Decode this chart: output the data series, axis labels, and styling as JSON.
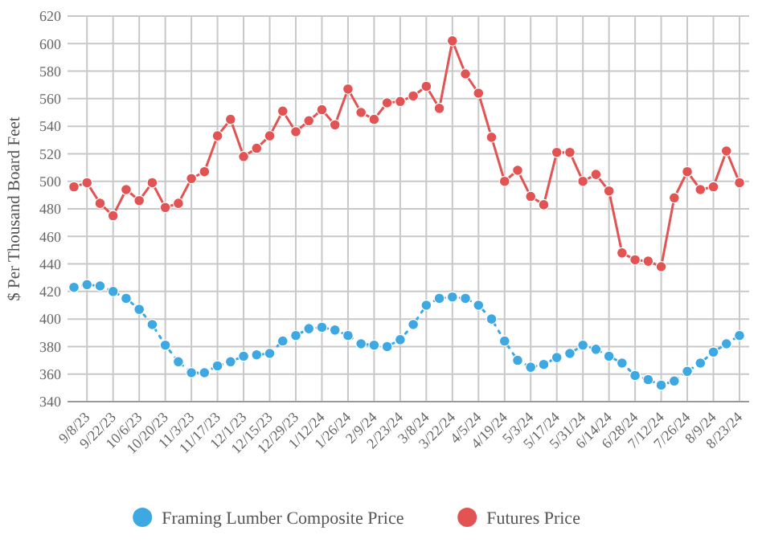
{
  "chart_data": {
    "type": "line",
    "ylabel": "$ Per Thousand Board Feet",
    "categories": [
      null,
      "9/8/23",
      null,
      "9/22/23",
      null,
      "10/6/23",
      null,
      "10/20/23",
      null,
      "11/3/23",
      null,
      "11/17/23",
      null,
      "12/1/23",
      null,
      "12/15/23",
      null,
      "12/29/23",
      null,
      "1/12/24",
      null,
      "1/26/24",
      null,
      "2/9/24",
      null,
      "2/23/24",
      null,
      "3/8/24",
      null,
      "3/22/24",
      null,
      "4/5/24",
      null,
      "4/19/24",
      null,
      "5/3/24",
      null,
      "5/17/24",
      null,
      "5/31/24",
      null,
      "6/14/24",
      null,
      "6/28/24",
      null,
      "7/12/24",
      null,
      "7/26/24",
      null,
      "8/9/24",
      null,
      "8/23/24"
    ],
    "series": [
      {
        "name": "Framing Lumber Composite Price",
        "color": "#3ea8e2",
        "line_style": "dotted",
        "values": [
          423,
          425,
          424,
          420,
          415,
          407,
          396,
          381,
          369,
          361,
          361,
          366,
          369,
          373,
          374,
          375,
          384,
          388,
          393,
          394,
          392,
          388,
          382,
          381,
          380,
          385,
          396,
          410,
          415,
          416,
          415,
          410,
          400,
          384,
          370,
          365,
          367,
          372,
          375,
          381,
          378,
          373,
          368,
          359,
          356,
          352,
          355,
          362,
          368,
          376,
          382,
          388
        ]
      },
      {
        "name": "Futures Price",
        "color": "#e25454",
        "line_style": "solid",
        "values": [
          496,
          499,
          484,
          475,
          494,
          486,
          499,
          481,
          484,
          502,
          507,
          533,
          545,
          518,
          524,
          533,
          551,
          536,
          544,
          552,
          541,
          567,
          550,
          545,
          557,
          558,
          562,
          569,
          553,
          602,
          578,
          564,
          532,
          500,
          508,
          489,
          483,
          521,
          521,
          500,
          505,
          493,
          448,
          443,
          442,
          438,
          488,
          507,
          494,
          496,
          522,
          499
        ]
      }
    ],
    "ylim": [
      340,
      620
    ],
    "yticks": [
      340,
      360,
      380,
      400,
      420,
      440,
      460,
      480,
      500,
      520,
      540,
      560,
      580,
      600,
      620
    ],
    "grid": true,
    "legend": "bottom",
    "marker": "circle"
  }
}
